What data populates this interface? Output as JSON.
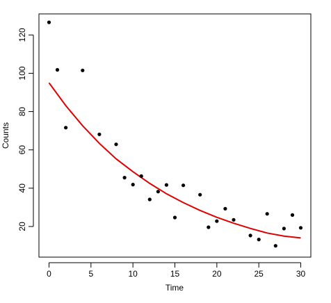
{
  "chart_data": {
    "type": "scatter",
    "xlabel": "Time",
    "ylabel": "Counts",
    "xlim": [
      -1.2,
      31.2
    ],
    "ylim": [
      4,
      131
    ],
    "xticks": [
      0,
      5,
      10,
      15,
      20,
      25,
      30
    ],
    "yticks": [
      20,
      40,
      60,
      80,
      100,
      120
    ],
    "grid": false,
    "points": {
      "color": "#000000",
      "x": [
        0,
        1,
        2,
        4,
        6,
        8,
        9,
        10,
        11,
        12,
        13,
        14,
        15,
        16,
        18,
        19,
        20,
        21,
        22,
        24,
        25,
        26,
        27,
        28,
        29,
        30
      ],
      "y": [
        126.6,
        101.8,
        71.6,
        101.5,
        68.1,
        62.9,
        45.5,
        41.9,
        46.3,
        34.1,
        38.2,
        41.7,
        24.7,
        41.5,
        36.6,
        19.6,
        22.8,
        29.3,
        23.5,
        15.3,
        13.2,
        26.6,
        9.9,
        18.9,
        26.0,
        19.3
      ]
    },
    "fit_line": {
      "color": "#e00000",
      "x": [
        0,
        2,
        4,
        6,
        8,
        10,
        12,
        14,
        16,
        18,
        20,
        22,
        24,
        26,
        28,
        30
      ],
      "y": [
        95.0,
        83.1,
        72.6,
        63.4,
        55.3,
        48.6,
        42.5,
        37.1,
        32.5,
        28.4,
        24.8,
        21.7,
        19.0,
        16.6,
        15.0,
        14.0
      ]
    }
  }
}
